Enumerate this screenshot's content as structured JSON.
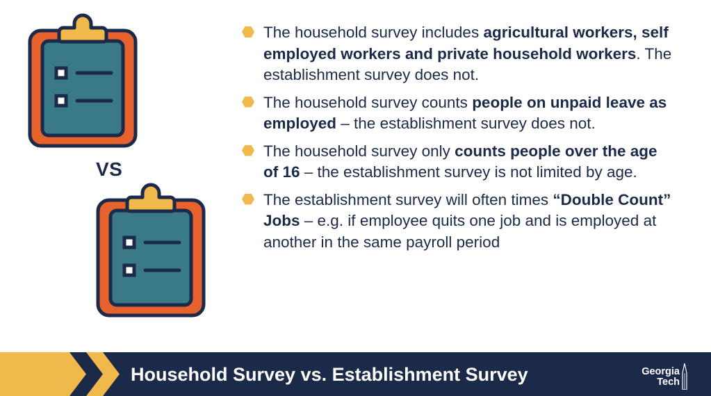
{
  "versus_label": "VS",
  "bullets": [
    {
      "parts": [
        {
          "text": "The household survey includes ",
          "bold": false
        },
        {
          "text": "agricultural workers, self employed workers and private household workers",
          "bold": true
        },
        {
          "text": ".  The establishment survey does not.",
          "bold": false
        }
      ]
    },
    {
      "parts": [
        {
          "text": "The household survey counts ",
          "bold": false
        },
        {
          "text": "people on unpaid leave as employed",
          "bold": true
        },
        {
          "text": " – the establishment survey does not.",
          "bold": false
        }
      ]
    },
    {
      "parts": [
        {
          "text": "The household survey only ",
          "bold": false
        },
        {
          "text": "counts people over the age of 16",
          "bold": true
        },
        {
          "text": " – the establishment survey is not limited by age.",
          "bold": false
        }
      ]
    },
    {
      "parts": [
        {
          "text": "The establishment survey will often times ",
          "bold": false
        },
        {
          "text": "“Double Count” Jobs",
          "bold": true
        },
        {
          "text": " – e.g. if employee quits one job and is employed at another in the same payroll period",
          "bold": false
        }
      ]
    }
  ],
  "footer": {
    "title": "Household Survey vs. Establishment Survey",
    "logo_line1": "Georgia",
    "logo_line2": "Tech"
  },
  "colors": {
    "navy": "#1b2a48",
    "orange": "#e8622e",
    "teal": "#3a7a86",
    "gold": "#f1b84b"
  },
  "icons": [
    "clipboard-icon",
    "clipboard-icon",
    "hexagon-bullet-icon",
    "georgia-tech-logo"
  ]
}
